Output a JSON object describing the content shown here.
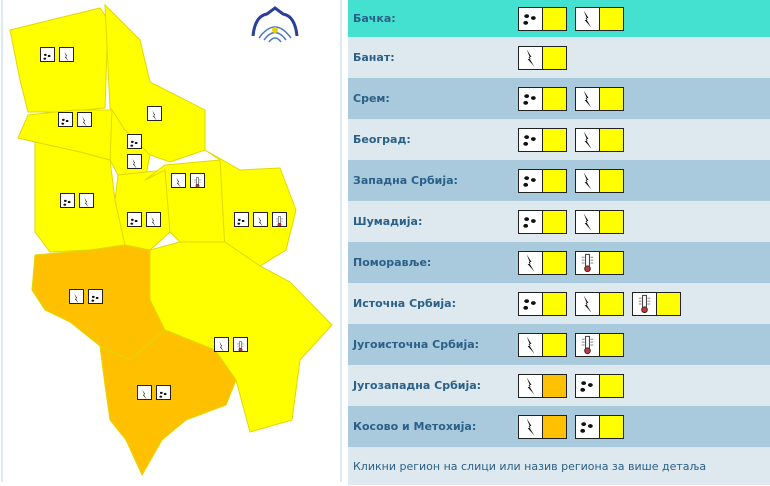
{
  "colors": {
    "yellow": "#ffff00",
    "orange": "#ffc000",
    "highlight": "#44e0d0"
  },
  "map": {
    "regions": [
      {
        "name": "backa",
        "level": "yellow",
        "icons": [
          "rain",
          "thunder"
        ]
      },
      {
        "name": "banat",
        "level": "yellow",
        "icons": [
          "thunder"
        ]
      },
      {
        "name": "srem",
        "level": "yellow",
        "icons": [
          "rain",
          "thunder"
        ]
      },
      {
        "name": "beograd",
        "level": "yellow",
        "icons": [
          "rain",
          "thunder"
        ]
      },
      {
        "name": "zapadna-srbija",
        "level": "yellow",
        "icons": [
          "rain",
          "thunder"
        ]
      },
      {
        "name": "sumadija",
        "level": "yellow",
        "icons": [
          "rain",
          "thunder"
        ]
      },
      {
        "name": "pomoravlje",
        "level": "yellow",
        "icons": [
          "thunder",
          "heat"
        ]
      },
      {
        "name": "istocna-srbija",
        "level": "yellow",
        "icons": [
          "rain",
          "thunder",
          "heat"
        ]
      },
      {
        "name": "jugoistocna-srbija",
        "level": "yellow",
        "icons": [
          "thunder",
          "heat"
        ]
      },
      {
        "name": "jugozapadna-srbija",
        "level": "orange",
        "icons": [
          "thunder",
          "rain"
        ]
      },
      {
        "name": "kosovo",
        "level": "orange",
        "icons": [
          "thunder",
          "rain"
        ]
      }
    ]
  },
  "rows": [
    {
      "label": "Бачка:",
      "warnings": [
        [
          "rain",
          "yellow"
        ],
        [
          "thunder",
          "yellow"
        ]
      ]
    },
    {
      "label": "Банат:",
      "warnings": [
        [
          "thunder",
          "yellow"
        ]
      ]
    },
    {
      "label": "Срем:",
      "warnings": [
        [
          "rain",
          "yellow"
        ],
        [
          "thunder",
          "yellow"
        ]
      ]
    },
    {
      "label": "Београд:",
      "warnings": [
        [
          "rain",
          "yellow"
        ],
        [
          "thunder",
          "yellow"
        ]
      ]
    },
    {
      "label": "Западна Србија:",
      "warnings": [
        [
          "rain",
          "yellow"
        ],
        [
          "thunder",
          "yellow"
        ]
      ]
    },
    {
      "label": "Шумадија:",
      "warnings": [
        [
          "rain",
          "yellow"
        ],
        [
          "thunder",
          "yellow"
        ]
      ]
    },
    {
      "label": "Поморавље:",
      "warnings": [
        [
          "thunder",
          "yellow"
        ],
        [
          "heat",
          "yellow"
        ]
      ]
    },
    {
      "label": "Источна Србија:",
      "warnings": [
        [
          "rain",
          "yellow"
        ],
        [
          "thunder",
          "yellow"
        ],
        [
          "heat",
          "yellow"
        ]
      ]
    },
    {
      "label": "Југоисточна Србија:",
      "warnings": [
        [
          "thunder",
          "yellow"
        ],
        [
          "heat",
          "yellow"
        ]
      ]
    },
    {
      "label": "Југозападна Србија:",
      "warnings": [
        [
          "thunder",
          "orange"
        ],
        [
          "rain",
          "yellow"
        ]
      ]
    },
    {
      "label": "Косово и Метохија:",
      "warnings": [
        [
          "thunder",
          "orange"
        ],
        [
          "rain",
          "yellow"
        ]
      ]
    }
  ],
  "footer": "Кликни регион на слици или назив региона за више детаља"
}
